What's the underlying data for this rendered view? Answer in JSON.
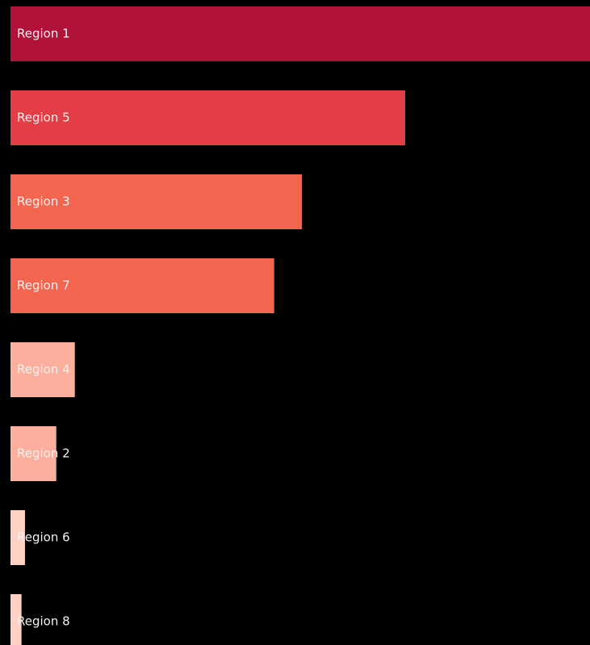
{
  "chart_data": {
    "type": "bar",
    "orientation": "horizontal",
    "categories": [
      "Region 1",
      "Region 5",
      "Region 3",
      "Region 7",
      "Region 4",
      "Region 2",
      "Region 6",
      "Region 8"
    ],
    "values": [
      100,
      68.1,
      50.3,
      45.5,
      11.1,
      7.9,
      2.5,
      1.9
    ],
    "colors": [
      "#b11238",
      "#e33d45",
      "#f4654f",
      "#f4654f",
      "#fcaf9c",
      "#fcaf9c",
      "#fdd1c4",
      "#fdd1c4"
    ],
    "xlim": [
      0,
      100
    ],
    "grid": false,
    "axes_visible": false,
    "background": "#000000",
    "label_color": "#f2f2f2"
  }
}
